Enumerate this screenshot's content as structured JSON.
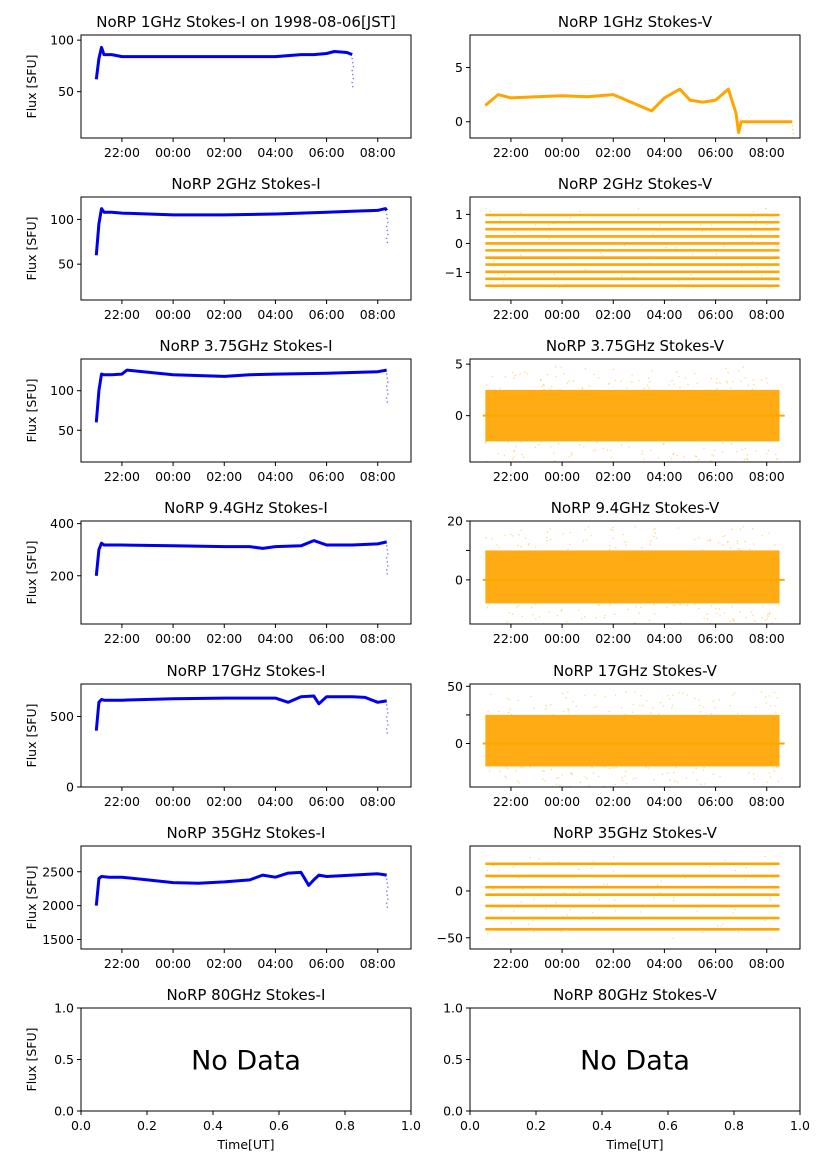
{
  "figure": {
    "time_ticks": [
      "22:00",
      "00:00",
      "02:00",
      "04:00",
      "06:00",
      "08:00"
    ],
    "frac_ticks": [
      "0.0",
      "0.2",
      "0.4",
      "0.6",
      "0.8",
      "1.0"
    ],
    "ylabel": "Flux [SFU]",
    "xlabel": "Time[UT]",
    "no_data_text": "No Data"
  },
  "colors": {
    "stokes_i": "#0000ee",
    "stokes_v": "#ffa500"
  },
  "chart_data": [
    {
      "type": "line",
      "title": "NoRP 1GHz Stokes-I on 1998-08-06[JST]",
      "ylabel": "Flux [SFU]",
      "xlim_hours": [
        20.4,
        33.3
      ],
      "ylim": [
        5,
        105
      ],
      "yticks": [
        50,
        100
      ],
      "series": [
        {
          "name": "Stokes-I",
          "color": "#0000ee",
          "hours": [
            21.0,
            21.1,
            21.2,
            21.3,
            21.6,
            22.0,
            23.0,
            24.0,
            26.0,
            28.0,
            29.0,
            29.5,
            30.0,
            30.3,
            30.8,
            31.0
          ],
          "values": [
            62,
            82,
            93,
            86,
            86,
            84,
            84,
            84,
            84,
            84,
            86,
            86,
            87,
            89,
            88,
            86
          ]
        }
      ]
    },
    {
      "type": "line",
      "title": "NoRP 1GHz Stokes-V",
      "xlim_hours": [
        20.4,
        33.3
      ],
      "ylim": [
        -1.5,
        8.0
      ],
      "yticks": [
        0,
        5
      ],
      "series": [
        {
          "name": "Stokes-V",
          "color": "#ffa500",
          "hours": [
            21.0,
            21.5,
            22.0,
            23.0,
            24.0,
            25.0,
            26.0,
            27.0,
            27.5,
            28.0,
            28.6,
            29.0,
            29.5,
            30.0,
            30.5,
            30.8,
            30.9,
            31.0,
            33.0
          ],
          "values": [
            1.5,
            2.5,
            2.2,
            2.3,
            2.4,
            2.3,
            2.5,
            1.5,
            1.0,
            2.2,
            3.0,
            2.0,
            1.8,
            2.0,
            3.0,
            0.8,
            -1.0,
            0,
            0
          ]
        }
      ]
    },
    {
      "type": "line",
      "title": "NoRP 2GHz Stokes-I",
      "ylabel": "Flux [SFU]",
      "xlim_hours": [
        20.4,
        33.3
      ],
      "ylim": [
        10,
        125
      ],
      "yticks": [
        50,
        100
      ],
      "series": [
        {
          "name": "Stokes-I",
          "color": "#0000ee",
          "hours": [
            21.0,
            21.1,
            21.2,
            21.3,
            21.6,
            22.0,
            24.0,
            26.0,
            28.0,
            30.0,
            31.0,
            32.0,
            32.3,
            32.35
          ],
          "values": [
            60,
            95,
            112,
            108,
            108,
            107,
            105,
            105,
            106,
            108,
            109,
            110,
            112,
            110
          ]
        }
      ]
    },
    {
      "type": "scatter",
      "title": "NoRP 2GHz Stokes-V",
      "xlim_hours": [
        20.4,
        33.3
      ],
      "ylim": [
        -1.95,
        1.6
      ],
      "yticks": [
        -1,
        0,
        1
      ],
      "series": [
        {
          "name": "Stokes-V",
          "color": "#ffa500",
          "levels": [
            -1.46,
            -1.22,
            -0.98,
            -0.73,
            -0.49,
            -0.24,
            0,
            0.24,
            0.49,
            0.73,
            0.98
          ],
          "hours": [
            21.0,
            32.5
          ]
        }
      ]
    },
    {
      "type": "line",
      "title": "NoRP 3.75GHz Stokes-I",
      "ylabel": "Flux [SFU]",
      "xlim_hours": [
        20.4,
        33.3
      ],
      "ylim": [
        10,
        140
      ],
      "yticks": [
        50,
        100
      ],
      "series": [
        {
          "name": "Stokes-I",
          "color": "#0000ee",
          "hours": [
            21.0,
            21.1,
            21.2,
            21.3,
            21.6,
            22.0,
            22.2,
            24.0,
            26.0,
            27.0,
            28.0,
            30.0,
            31.0,
            32.0,
            32.35
          ],
          "values": [
            60,
            100,
            121,
            120,
            120,
            121,
            126,
            120,
            118,
            120,
            121,
            122,
            123,
            124,
            126
          ]
        }
      ]
    },
    {
      "type": "scatter",
      "title": "NoRP 3.75GHz Stokes-V",
      "xlim_hours": [
        20.4,
        33.3
      ],
      "ylim": [
        -4.5,
        5.5
      ],
      "yticks": [
        0,
        5
      ],
      "series": [
        {
          "name": "Stokes-V",
          "color": "#ffa500",
          "band": [
            -2.5,
            2.5
          ],
          "hours": [
            21.0,
            32.5
          ]
        }
      ]
    },
    {
      "type": "line",
      "title": "NoRP 9.4GHz Stokes-I",
      "ylabel": "Flux [SFU]",
      "xlim_hours": [
        20.4,
        33.3
      ],
      "ylim": [
        15,
        410
      ],
      "yticks": [
        200,
        400
      ],
      "series": [
        {
          "name": "Stokes-I",
          "color": "#0000ee",
          "hours": [
            21.0,
            21.1,
            21.2,
            21.3,
            21.6,
            22.0,
            24.0,
            26.0,
            27.0,
            27.5,
            28.0,
            29.0,
            29.5,
            30.0,
            31.0,
            32.0,
            32.35
          ],
          "values": [
            200,
            300,
            325,
            318,
            318,
            318,
            315,
            312,
            312,
            305,
            312,
            315,
            335,
            318,
            318,
            322,
            330
          ]
        }
      ]
    },
    {
      "type": "scatter",
      "title": "NoRP 9.4GHz Stokes-V",
      "xlim_hours": [
        20.4,
        33.3
      ],
      "ylim": [
        -15,
        20
      ],
      "yticks": [
        0,
        10,
        20
      ],
      "ytick_labels": [
        "0",
        "",
        "20"
      ],
      "series": [
        {
          "name": "Stokes-V",
          "color": "#ffa500",
          "band": [
            -8,
            10
          ],
          "hours": [
            21.0,
            32.5
          ]
        }
      ]
    },
    {
      "type": "line",
      "title": "NoRP 17GHz Stokes-I",
      "ylabel": "Flux [SFU]",
      "xlim_hours": [
        20.4,
        33.3
      ],
      "ylim": [
        0,
        730
      ],
      "yticks": [
        0,
        500
      ],
      "series": [
        {
          "name": "Stokes-I",
          "color": "#0000ee",
          "hours": [
            21.0,
            21.1,
            21.2,
            21.3,
            21.6,
            22.0,
            24.0,
            26.0,
            28.0,
            28.5,
            29.0,
            29.5,
            29.7,
            30.0,
            31.0,
            31.5,
            32.0,
            32.35
          ],
          "values": [
            400,
            600,
            620,
            615,
            615,
            615,
            625,
            630,
            630,
            600,
            640,
            645,
            590,
            640,
            640,
            635,
            600,
            610
          ]
        }
      ]
    },
    {
      "type": "scatter",
      "title": "NoRP 17GHz Stokes-V",
      "xlim_hours": [
        20.4,
        33.3
      ],
      "ylim": [
        -38,
        52
      ],
      "yticks": [
        0,
        25,
        50
      ],
      "ytick_labels": [
        "0",
        "",
        "50"
      ],
      "series": [
        {
          "name": "Stokes-V",
          "color": "#ffa500",
          "band": [
            -20,
            25
          ],
          "hours": [
            21.0,
            32.5
          ]
        }
      ]
    },
    {
      "type": "line",
      "title": "NoRP 35GHz Stokes-I",
      "ylabel": "Flux [SFU]",
      "xlim_hours": [
        20.4,
        33.3
      ],
      "ylim": [
        1360,
        2880
      ],
      "yticks": [
        1500,
        2000,
        2500
      ],
      "series": [
        {
          "name": "Stokes-I",
          "color": "#0000ee",
          "hours": [
            21.0,
            21.1,
            21.2,
            21.5,
            22.0,
            23.0,
            24.0,
            25.0,
            26.0,
            27.0,
            27.5,
            28.0,
            28.5,
            29.0,
            29.3,
            29.5,
            29.7,
            30.0,
            31.0,
            32.0,
            32.35
          ],
          "values": [
            2000,
            2400,
            2430,
            2420,
            2420,
            2380,
            2340,
            2330,
            2350,
            2380,
            2450,
            2420,
            2480,
            2490,
            2300,
            2380,
            2450,
            2430,
            2450,
            2470,
            2450
          ]
        }
      ]
    },
    {
      "type": "scatter",
      "title": "NoRP 35GHz Stokes-V",
      "xlim_hours": [
        20.4,
        33.3
      ],
      "ylim": [
        -62,
        48
      ],
      "yticks": [
        -50,
        0
      ],
      "series": [
        {
          "name": "Stokes-V",
          "color": "#ffa500",
          "levels": [
            -41,
            -29,
            -16,
            -4,
            4,
            16,
            29
          ],
          "hours": [
            21.0,
            32.5
          ]
        }
      ]
    },
    {
      "type": "line",
      "title": "NoRP 80GHz Stokes-I",
      "ylabel": "Flux [SFU]",
      "xlabel": "Time[UT]",
      "xlim": [
        0,
        1
      ],
      "ylim": [
        0,
        1
      ],
      "yticks": [
        0.0,
        0.5,
        1.0
      ],
      "yticks_text": [
        "0.0",
        "0.5",
        "1.0"
      ],
      "no_data": true,
      "series": []
    },
    {
      "type": "line",
      "title": "NoRP 80GHz Stokes-V",
      "xlabel": "Time[UT]",
      "xlim": [
        0,
        1
      ],
      "ylim": [
        0,
        1
      ],
      "yticks": [
        0.0,
        0.5,
        1.0
      ],
      "yticks_text": [
        "0.0",
        "0.5",
        "1.0"
      ],
      "no_data": true,
      "series": []
    }
  ]
}
